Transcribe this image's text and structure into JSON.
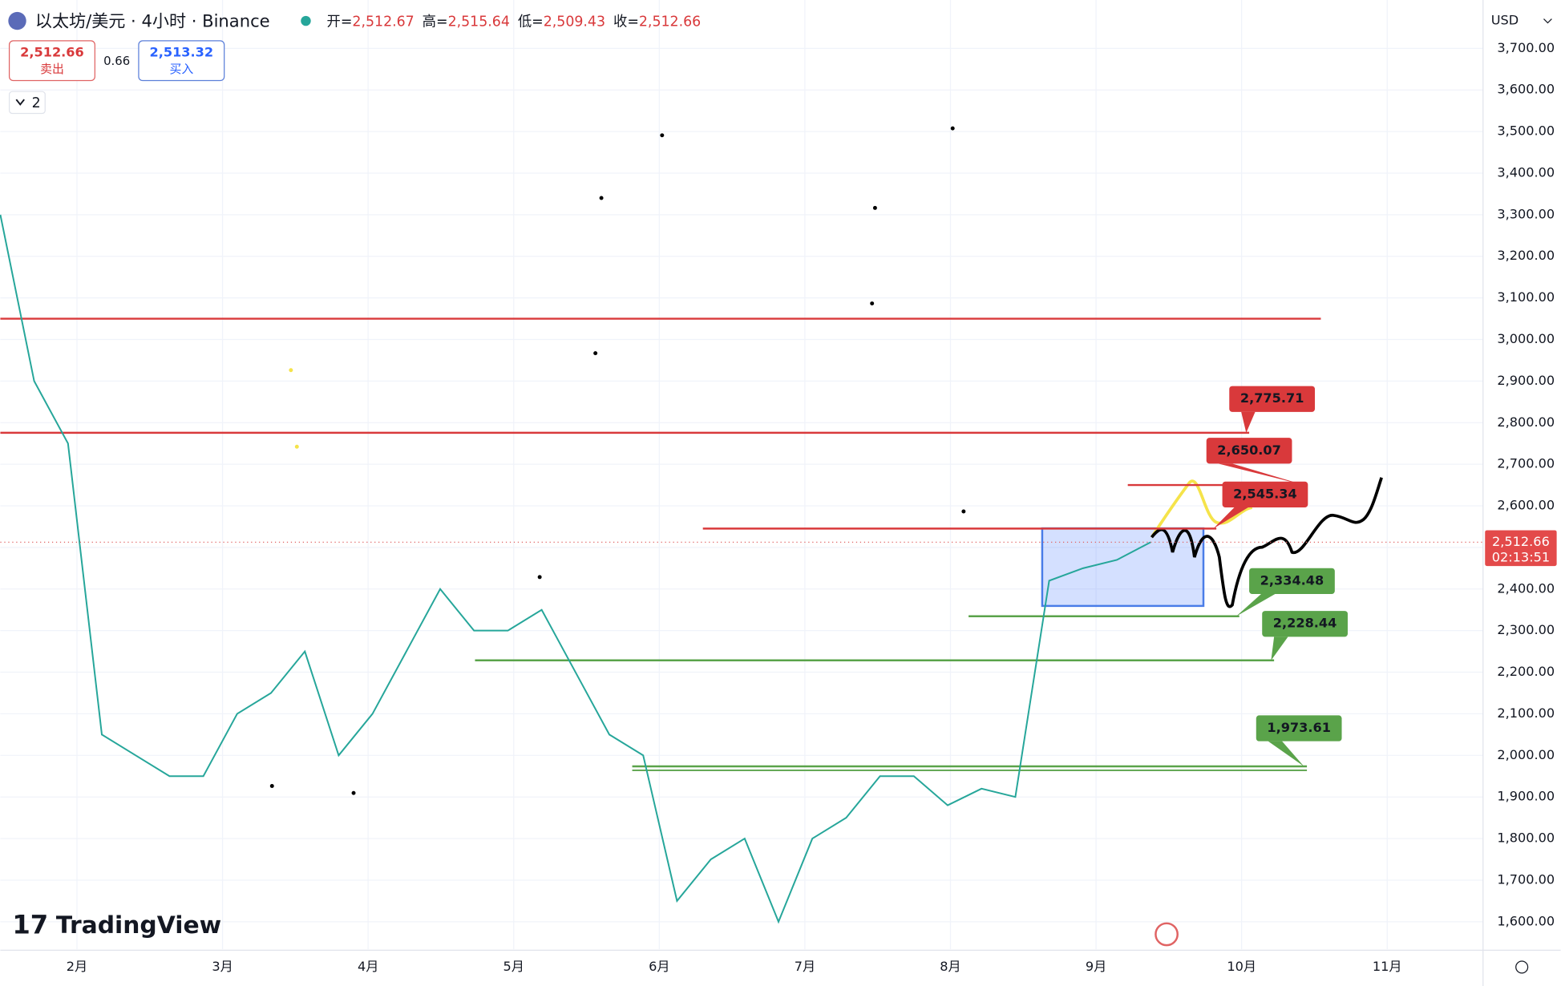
{
  "chart_data": {
    "type": "line",
    "title": "以太坊/美元 · 4小时 · Binance",
    "ohlc": [
      {
        "label": "开=",
        "value": "2,512.67"
      },
      {
        "label": "高=",
        "value": "2,515.64"
      },
      {
        "label": "低=",
        "value": "2,509.43"
      },
      {
        "label": "收=",
        "value": "2,512.66"
      }
    ],
    "sell": {
      "price": "2,512.66",
      "label": "卖出"
    },
    "spread": "0.66",
    "buy": {
      "price": "2,513.32",
      "label": "买入"
    },
    "indicator_count": "2",
    "currency": "USD",
    "brand": "TradingView",
    "current_price": {
      "value": 2512.66,
      "label": "2,512.66",
      "countdown": "02:13:51"
    },
    "color": "#26a69a",
    "values": [
      3300,
      2900,
      2750,
      2050,
      2000,
      1950,
      1950,
      2100,
      2150,
      2250,
      2000,
      2100,
      2250,
      2400,
      2300,
      2300,
      2350,
      2200,
      2050,
      2000,
      1650,
      1750,
      1800,
      1600,
      1800,
      1850,
      1950,
      1950,
      1880,
      1920,
      1900,
      2420,
      2450,
      2470,
      2512.66
    ],
    "xtick_labels": [
      "2月",
      "3月",
      "4月",
      "5月",
      "6月",
      "7月",
      "8月",
      "9月",
      "10月",
      "11月"
    ],
    "ylim": [
      1534,
      3790
    ],
    "yticks": [
      {
        "value": 1600,
        "label": "1,600.00"
      },
      {
        "value": 1700,
        "label": "1,700.00"
      },
      {
        "value": 1800,
        "label": "1,800.00"
      },
      {
        "value": 1900,
        "label": "1,900.00"
      },
      {
        "value": 2000,
        "label": "2,000.00"
      },
      {
        "value": 2100,
        "label": "2,100.00"
      },
      {
        "value": 2200,
        "label": "2,200.00"
      },
      {
        "value": 2300,
        "label": "2,300.00"
      },
      {
        "value": 2400,
        "label": "2,400.00"
      },
      {
        "value": 2500,
        "label": "2,500.00"
      },
      {
        "value": 2600,
        "label": "2,600.00"
      },
      {
        "value": 2700,
        "label": "2,700.00"
      },
      {
        "value": 2800,
        "label": "2,800.00"
      },
      {
        "value": 2900,
        "label": "2,900.00"
      },
      {
        "value": 3000,
        "label": "3,000.00"
      },
      {
        "value": 3100,
        "label": "3,100.00"
      },
      {
        "value": 3200,
        "label": "3,200.00"
      },
      {
        "value": 3300,
        "label": "3,300.00"
      },
      {
        "value": 3400,
        "label": "3,400.00"
      },
      {
        "value": 3500,
        "label": "3,500.00"
      },
      {
        "value": 3600,
        "label": "3,600.00"
      },
      {
        "value": 3700,
        "label": "3,700.00"
      }
    ],
    "grid": true,
    "levels": {
      "values": [
        3050,
        2775.71,
        2650.07,
        2545.34,
        2334.48,
        2228.44,
        1973.61
      ],
      "value_labels": [
        null,
        "2,775.71",
        "2,650.07",
        "2,545.34",
        "2,334.48",
        "2,228.44",
        "1,973.61"
      ],
      "colors": [
        "#d9393b",
        "#d9393b",
        "#d9393b",
        "#d9393b",
        "#5aa34a",
        "#5aa34a",
        "#5aa34a"
      ]
    }
  }
}
